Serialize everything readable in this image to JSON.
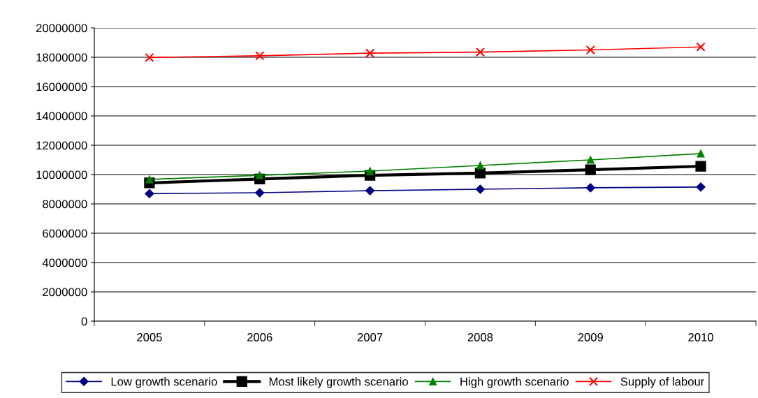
{
  "chart_data": {
    "type": "line",
    "categories": [
      "2005",
      "2006",
      "2007",
      "2008",
      "2009",
      "2010"
    ],
    "series": [
      {
        "name": "Low growth scenario",
        "color": "#000080",
        "marker": "diamond",
        "values": [
          8700000,
          8760000,
          8900000,
          9000000,
          9100000,
          9150000
        ]
      },
      {
        "name": "Most likely growth scenario",
        "color": "#000000",
        "marker": "square",
        "values": [
          9430000,
          9700000,
          9950000,
          10100000,
          10330000,
          10570000
        ]
      },
      {
        "name": "High growth scenario",
        "color": "#008000",
        "marker": "triangle",
        "values": [
          9670000,
          9950000,
          10240000,
          10620000,
          11000000,
          11430000
        ]
      },
      {
        "name": "Supply of labour",
        "color": "#ff0000",
        "marker": "cross",
        "values": [
          17980000,
          18100000,
          18280000,
          18350000,
          18500000,
          18700000
        ]
      }
    ],
    "ylim": [
      0,
      20000000
    ],
    "yticks": [
      0,
      2000000,
      4000000,
      6000000,
      8000000,
      10000000,
      12000000,
      14000000,
      16000000,
      18000000,
      20000000
    ],
    "grid": "y",
    "legend": "bottom"
  }
}
